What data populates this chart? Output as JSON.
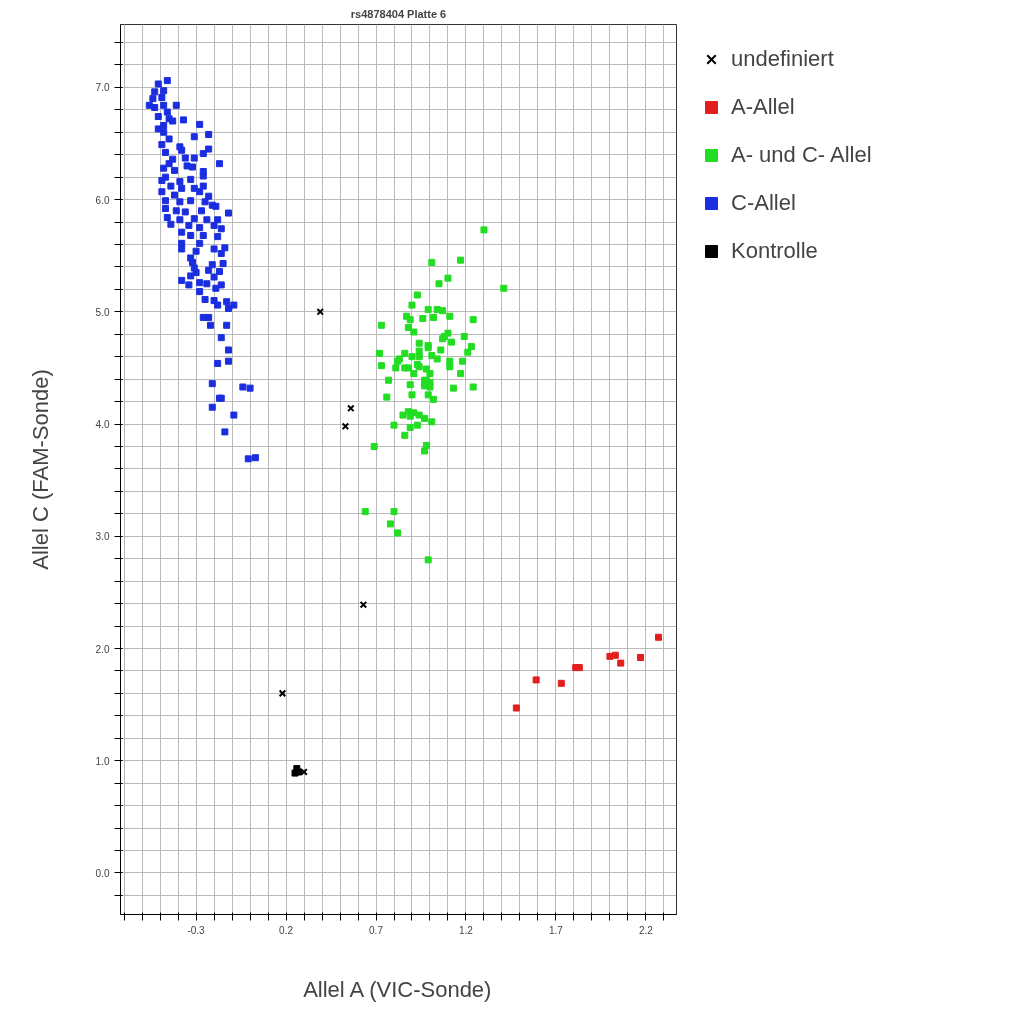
{
  "chart_data": {
    "type": "scatter",
    "title": "rs4878404 Platte 6",
    "xlabel": "Allel A (VIC-Sonde)",
    "ylabel": "Allel C (FAM-Sonde)",
    "xlim": [
      -0.72,
      2.37
    ],
    "ylim": [
      -0.37,
      7.56
    ],
    "xticks": [
      {
        "value": -0.7,
        "label": null
      },
      {
        "value": -0.6,
        "label": null
      },
      {
        "value": -0.5,
        "label": null
      },
      {
        "value": -0.4,
        "label": null
      },
      {
        "value": -0.3,
        "label": "-0.3"
      },
      {
        "value": -0.2,
        "label": null
      },
      {
        "value": -0.1,
        "label": null
      },
      {
        "value": 0.0,
        "label": null
      },
      {
        "value": 0.1,
        "label": null
      },
      {
        "value": 0.2,
        "label": "0.2"
      },
      {
        "value": 0.3,
        "label": null
      },
      {
        "value": 0.4,
        "label": null
      },
      {
        "value": 0.5,
        "label": null
      },
      {
        "value": 0.6,
        "label": null
      },
      {
        "value": 0.7,
        "label": "0.7"
      },
      {
        "value": 0.8,
        "label": null
      },
      {
        "value": 0.9,
        "label": null
      },
      {
        "value": 1.0,
        "label": null
      },
      {
        "value": 1.1,
        "label": null
      },
      {
        "value": 1.2,
        "label": "1.2"
      },
      {
        "value": 1.3,
        "label": null
      },
      {
        "value": 1.4,
        "label": null
      },
      {
        "value": 1.5,
        "label": null
      },
      {
        "value": 1.6,
        "label": null
      },
      {
        "value": 1.7,
        "label": "1.7"
      },
      {
        "value": 1.8,
        "label": null
      },
      {
        "value": 1.9,
        "label": null
      },
      {
        "value": 2.0,
        "label": null
      },
      {
        "value": 2.1,
        "label": null
      },
      {
        "value": 2.2,
        "label": "2.2"
      },
      {
        "value": 2.3,
        "label": null
      }
    ],
    "yticks": [
      {
        "value": -0.2,
        "label": null
      },
      {
        "value": 0.0,
        "label": "0.0"
      },
      {
        "value": 0.2,
        "label": null
      },
      {
        "value": 0.4,
        "label": null
      },
      {
        "value": 0.6,
        "label": null
      },
      {
        "value": 0.8,
        "label": null
      },
      {
        "value": 1.0,
        "label": "1.0"
      },
      {
        "value": 1.2,
        "label": null
      },
      {
        "value": 1.4,
        "label": null
      },
      {
        "value": 1.6,
        "label": null
      },
      {
        "value": 1.8,
        "label": null
      },
      {
        "value": 2.0,
        "label": "2.0"
      },
      {
        "value": 2.2,
        "label": null
      },
      {
        "value": 2.4,
        "label": null
      },
      {
        "value": 2.6,
        "label": null
      },
      {
        "value": 2.8,
        "label": null
      },
      {
        "value": 3.0,
        "label": "3.0"
      },
      {
        "value": 3.2,
        "label": null
      },
      {
        "value": 3.4,
        "label": null
      },
      {
        "value": 3.6,
        "label": null
      },
      {
        "value": 3.8,
        "label": null
      },
      {
        "value": 4.0,
        "label": "4.0"
      },
      {
        "value": 4.2,
        "label": null
      },
      {
        "value": 4.4,
        "label": null
      },
      {
        "value": 4.6,
        "label": null
      },
      {
        "value": 4.8,
        "label": null
      },
      {
        "value": 5.0,
        "label": "5.0"
      },
      {
        "value": 5.2,
        "label": null
      },
      {
        "value": 5.4,
        "label": null
      },
      {
        "value": 5.6,
        "label": null
      },
      {
        "value": 5.8,
        "label": null
      },
      {
        "value": 6.0,
        "label": "6.0"
      },
      {
        "value": 6.2,
        "label": null
      },
      {
        "value": 6.4,
        "label": null
      },
      {
        "value": 6.6,
        "label": null
      },
      {
        "value": 6.8,
        "label": null
      },
      {
        "value": 7.0,
        "label": "7.0"
      },
      {
        "value": 7.2,
        "label": null
      },
      {
        "value": 7.4,
        "label": null
      }
    ],
    "grid": true,
    "legend": "right",
    "series": [
      {
        "name": "undefiniert",
        "color": "#000000",
        "marker": "cross",
        "x": [
          0.39,
          0.56,
          0.53,
          0.63,
          0.18,
          0.3
        ],
        "values": [
          5.0,
          4.14,
          3.98,
          2.39,
          1.6,
          0.9
        ]
      },
      {
        "name": "A-Allel",
        "color": "#e41e1e",
        "marker": "square",
        "x": [
          1.48,
          1.59,
          1.73,
          1.81,
          1.83,
          2.0,
          2.03,
          2.06,
          2.17,
          2.27
        ],
        "values": [
          1.47,
          1.72,
          1.69,
          1.83,
          1.83,
          1.93,
          1.94,
          1.87,
          1.92,
          2.1
        ]
      },
      {
        "name": "A- und C- Allel",
        "color": "#22dd22",
        "marker": "square",
        "x": [
          1.3,
          1.01,
          1.17,
          1.1,
          1.05,
          1.41,
          0.93,
          0.9,
          0.99,
          1.04,
          1.07,
          0.87,
          0.89,
          0.96,
          1.02,
          1.11,
          1.24,
          0.73,
          0.88,
          0.91,
          1.1,
          1.07,
          1.08,
          1.12,
          1.19,
          0.94,
          0.99,
          0.99,
          1.23,
          1.21,
          1.06,
          0.72,
          0.94,
          0.86,
          0.9,
          0.94,
          1.01,
          1.04,
          0.83,
          0.82,
          1.11,
          1.18,
          0.73,
          0.93,
          0.88,
          0.81,
          0.86,
          0.94,
          1.11,
          0.98,
          1.0,
          0.91,
          1.17,
          0.77,
          0.97,
          0.98,
          1.0,
          0.89,
          0.97,
          1.0,
          1.13,
          1.24,
          0.9,
          0.76,
          0.99,
          1.02,
          0.88,
          0.91,
          0.85,
          0.89,
          0.94,
          0.97,
          1.01,
          0.8,
          0.89,
          0.93,
          0.86,
          0.98,
          0.97,
          0.69,
          0.64,
          0.8,
          0.78,
          0.82,
          0.99
        ],
        "values": [
          5.73,
          5.44,
          5.46,
          5.3,
          5.25,
          5.21,
          5.15,
          5.06,
          5.02,
          5.02,
          5.01,
          4.96,
          4.93,
          4.94,
          4.95,
          4.96,
          4.93,
          4.88,
          4.86,
          4.82,
          4.81,
          4.76,
          4.78,
          4.73,
          4.78,
          4.72,
          4.7,
          4.68,
          4.69,
          4.64,
          4.66,
          4.63,
          4.65,
          4.63,
          4.6,
          4.6,
          4.61,
          4.58,
          4.58,
          4.56,
          4.56,
          4.56,
          4.52,
          4.53,
          4.5,
          4.5,
          4.5,
          4.51,
          4.51,
          4.49,
          4.45,
          4.45,
          4.45,
          4.39,
          4.39,
          4.39,
          4.37,
          4.35,
          4.34,
          4.33,
          4.32,
          4.33,
          4.26,
          4.24,
          4.26,
          4.22,
          4.11,
          4.1,
          4.08,
          4.07,
          4.08,
          4.05,
          4.02,
          3.99,
          3.97,
          3.99,
          3.9,
          3.81,
          3.76,
          3.8,
          3.22,
          3.22,
          3.11,
          3.03,
          2.79
        ]
      },
      {
        "name": "C-Allel",
        "color": "#1a2ee0",
        "marker": "square",
        "x": [
          -0.46,
          -0.51,
          -0.48,
          -0.53,
          -0.49,
          -0.54,
          -0.56,
          -0.53,
          -0.48,
          -0.41,
          -0.46,
          -0.51,
          -0.45,
          -0.37,
          -0.43,
          -0.48,
          -0.51,
          -0.28,
          -0.48,
          -0.31,
          -0.23,
          -0.45,
          -0.49,
          -0.39,
          -0.38,
          -0.23,
          -0.47,
          -0.26,
          -0.43,
          -0.36,
          -0.31,
          -0.17,
          -0.45,
          -0.35,
          -0.48,
          -0.42,
          -0.32,
          -0.26,
          -0.47,
          -0.49,
          -0.39,
          -0.33,
          -0.26,
          -0.44,
          -0.38,
          -0.31,
          -0.26,
          -0.49,
          -0.42,
          -0.28,
          -0.23,
          -0.47,
          -0.39,
          -0.33,
          -0.25,
          -0.21,
          -0.47,
          -0.41,
          -0.36,
          -0.27,
          -0.12,
          -0.19,
          -0.46,
          -0.39,
          -0.31,
          -0.24,
          -0.18,
          -0.44,
          -0.34,
          -0.28,
          -0.2,
          -0.16,
          -0.38,
          -0.33,
          -0.26,
          -0.18,
          -0.38,
          -0.28,
          -0.38,
          -0.2,
          -0.14,
          -0.16,
          -0.3,
          -0.33,
          -0.32,
          -0.15,
          -0.21,
          -0.31,
          -0.23,
          -0.17,
          -0.3,
          -0.33,
          -0.2,
          -0.38,
          -0.28,
          -0.24,
          -0.34,
          -0.16,
          -0.19,
          -0.28,
          -0.25,
          -0.2,
          -0.18,
          -0.13,
          -0.09,
          -0.12,
          -0.26,
          -0.23,
          -0.22,
          -0.13,
          -0.16,
          -0.12,
          -0.18,
          -0.12,
          -0.21,
          -0.04,
          0.0,
          -0.17,
          -0.16,
          -0.21,
          -0.09,
          -0.14,
          -0.01,
          0.03
        ],
        "values": [
          7.06,
          7.03,
          6.97,
          6.96,
          6.91,
          6.9,
          6.84,
          6.82,
          6.84,
          6.84,
          6.78,
          6.74,
          6.72,
          6.71,
          6.7,
          6.66,
          6.63,
          6.67,
          6.6,
          6.56,
          6.58,
          6.54,
          6.49,
          6.47,
          6.44,
          6.45,
          6.42,
          6.41,
          6.36,
          6.37,
          6.37,
          6.32,
          6.32,
          6.3,
          6.28,
          6.26,
          6.29,
          6.25,
          6.2,
          6.17,
          6.16,
          6.18,
          6.21,
          6.12,
          6.1,
          6.1,
          6.12,
          6.07,
          6.04,
          6.07,
          6.03,
          5.99,
          5.98,
          5.99,
          5.98,
          5.95,
          5.92,
          5.9,
          5.89,
          5.9,
          5.88,
          5.94,
          5.84,
          5.82,
          5.83,
          5.82,
          5.82,
          5.78,
          5.77,
          5.75,
          5.77,
          5.74,
          5.71,
          5.68,
          5.68,
          5.67,
          5.61,
          5.61,
          5.56,
          5.56,
          5.57,
          5.52,
          5.54,
          5.48,
          5.44,
          5.43,
          5.42,
          5.39,
          5.37,
          5.36,
          5.35,
          5.32,
          5.31,
          5.28,
          5.26,
          5.25,
          5.24,
          5.24,
          5.21,
          5.18,
          5.11,
          5.1,
          5.06,
          5.09,
          5.06,
          5.03,
          4.95,
          4.95,
          4.88,
          4.88,
          4.77,
          4.66,
          4.54,
          4.56,
          4.36,
          4.33,
          4.32,
          4.23,
          4.23,
          4.15,
          4.08,
          3.93,
          3.69,
          3.7
        ]
      },
      {
        "name": "Kontrolle",
        "color": "#000000",
        "marker": "square",
        "x": [
          0.26,
          0.27,
          0.25
        ],
        "values": [
          0.93,
          0.9,
          0.89
        ]
      }
    ]
  }
}
